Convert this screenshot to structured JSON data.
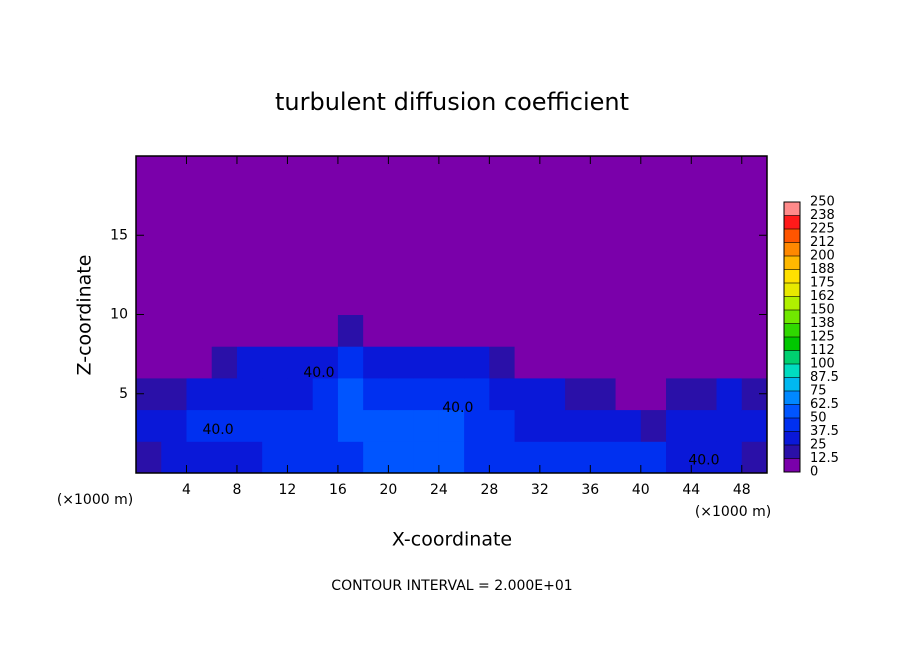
{
  "chart_data": {
    "type": "heatmap",
    "title": "turbulent diffusion coefficient",
    "xlabel": "X-coordinate",
    "ylabel": "Z-coordinate",
    "x_unit": "(×1000 m)",
    "footer": "CONTOUR INTERVAL = 2.000E+01",
    "xlim": [
      0,
      50
    ],
    "ylim": [
      0,
      20
    ],
    "xticks": [
      4,
      8,
      12,
      16,
      20,
      24,
      28,
      32,
      36,
      40,
      44,
      48
    ],
    "yticks": [
      5,
      10,
      15
    ],
    "x": [
      1,
      3,
      5,
      7,
      9,
      11,
      13,
      15,
      17,
      19,
      21,
      23,
      25,
      27,
      29,
      31,
      33,
      35,
      37,
      39,
      41,
      43,
      45,
      47,
      49
    ],
    "z": [
      1,
      3,
      5,
      7,
      9,
      11,
      13,
      15,
      17,
      19
    ],
    "values": [
      [
        20,
        25,
        30,
        35,
        30,
        40,
        40,
        45,
        45,
        50,
        50,
        50,
        50,
        45,
        45,
        40,
        40,
        45,
        45,
        45,
        40,
        35,
        35,
        25,
        20
      ],
      [
        35,
        30,
        40,
        45,
        40,
        40,
        40,
        45,
        50,
        50,
        50,
        55,
        55,
        45,
        40,
        35,
        30,
        35,
        30,
        25,
        20,
        30,
        30,
        35,
        30
      ],
      [
        15,
        20,
        25,
        30,
        30,
        35,
        35,
        40,
        50,
        45,
        45,
        40,
        40,
        40,
        35,
        30,
        25,
        20,
        15,
        10,
        10,
        15,
        20,
        25,
        20
      ],
      [
        0,
        0,
        5,
        20,
        25,
        25,
        30,
        35,
        40,
        30,
        30,
        25,
        25,
        25,
        15,
        5,
        0,
        0,
        0,
        0,
        0,
        0,
        0,
        0,
        0
      ],
      [
        0,
        0,
        0,
        0,
        0,
        0,
        0,
        5,
        15,
        10,
        0,
        0,
        0,
        0,
        0,
        0,
        0,
        0,
        0,
        0,
        0,
        0,
        0,
        0,
        0
      ],
      [
        0,
        0,
        0,
        0,
        0,
        0,
        0,
        0,
        0,
        0,
        0,
        0,
        0,
        0,
        0,
        0,
        0,
        0,
        0,
        0,
        0,
        0,
        0,
        0,
        0
      ],
      [
        0,
        0,
        0,
        0,
        0,
        0,
        0,
        0,
        0,
        0,
        0,
        0,
        0,
        0,
        0,
        0,
        0,
        0,
        0,
        0,
        0,
        0,
        0,
        0,
        0
      ],
      [
        0,
        0,
        0,
        0,
        0,
        0,
        0,
        0,
        0,
        0,
        0,
        0,
        0,
        0,
        0,
        0,
        0,
        0,
        0,
        0,
        0,
        0,
        0,
        0,
        0
      ],
      [
        0,
        0,
        0,
        0,
        0,
        0,
        0,
        0,
        0,
        0,
        0,
        0,
        0,
        0,
        0,
        0,
        0,
        0,
        0,
        0,
        0,
        0,
        0,
        0,
        0
      ],
      [
        0,
        0,
        0,
        0,
        0,
        0,
        0,
        0,
        0,
        0,
        0,
        0,
        0,
        0,
        0,
        0,
        0,
        0,
        0,
        0,
        0,
        0,
        0,
        0,
        0
      ]
    ],
    "contour_labels": [
      {
        "text": "40.0",
        "x": 14.5,
        "z": 6.3
      },
      {
        "text": "40.0",
        "x": 25.5,
        "z": 4.1
      },
      {
        "text": "40.0",
        "x": 6.5,
        "z": 2.7
      },
      {
        "text": "40.0",
        "x": 45,
        "z": 0.8
      }
    ],
    "colorbar_ticks": [
      0,
      12.5,
      25,
      37.5,
      50,
      62.5,
      75,
      87.5,
      100,
      {
        "value": 112.5,
        "label": "112"
      },
      125,
      {
        "value": 137.5,
        "label": "138"
      },
      150,
      {
        "value": 162.5,
        "label": "162"
      },
      175,
      {
        "value": 187.5,
        "label": "188"
      },
      200,
      {
        "value": 212.5,
        "label": "212"
      },
      225,
      {
        "value": 237.5,
        "label": "238"
      },
      250
    ],
    "colors": [
      "#7a00aa",
      "#2a10a8",
      "#0a18d8",
      "#0030f0",
      "#0055ff",
      "#0088ff",
      "#00b8f0",
      "#00dcc0",
      "#00d070",
      "#00c800",
      "#30d800",
      "#70e800",
      "#b0f000",
      "#e8e800",
      "#ffe000",
      "#ffb800",
      "#ff8800",
      "#ff5500",
      "#ff1a1a",
      "#ff8a8a"
    ]
  }
}
